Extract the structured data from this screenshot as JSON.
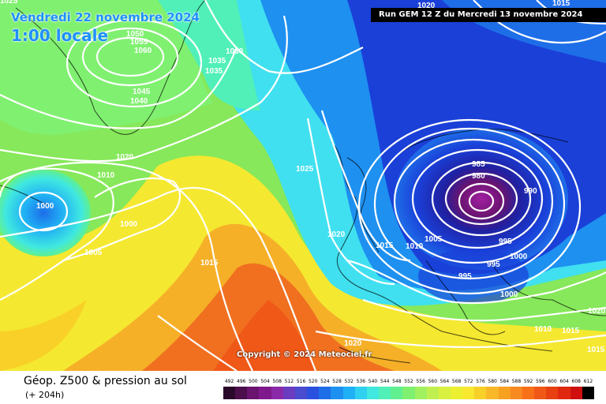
{
  "header": {
    "date": "Vendredi 22 novembre 2024",
    "time": "1:00 locale",
    "run": "Run GEM 12 Z du Mercredi 13 novembre 2024"
  },
  "copyright": "Copyright © 2024 Meteociel.fr",
  "footer": {
    "title": "Géop. Z500 & pression au sol",
    "subtitle": "(+ 204h)"
  },
  "scale": {
    "labels": [
      "492",
      "496",
      "500",
      "504",
      "508",
      "512",
      "516",
      "520",
      "524",
      "528",
      "532",
      "536",
      "540",
      "544",
      "548",
      "552",
      "556",
      "560",
      "564",
      "568",
      "572",
      "576",
      "580",
      "584",
      "588",
      "592",
      "596",
      "600",
      "604",
      "608",
      "612"
    ],
    "colors": [
      "#2a0a2a",
      "#4b0f4b",
      "#6a1470",
      "#801a8c",
      "#8a2aa8",
      "#6a3cc0",
      "#4a4cd0",
      "#2a50e0",
      "#1e6ee8",
      "#1e90f0",
      "#20b0f5",
      "#30d0f0",
      "#40e8e0",
      "#50f0b8",
      "#60f090",
      "#80f070",
      "#a0f060",
      "#c0f050",
      "#d8f040",
      "#ecf030",
      "#f8e830",
      "#f8d028",
      "#f8b828",
      "#f8a020",
      "#f88820",
      "#f87018",
      "#f05818",
      "#e84010",
      "#e02810",
      "#d01010",
      "#000000"
    ]
  },
  "map": {
    "colors": {
      "ocean_green": "#86e85a",
      "yellow": "#f5e830",
      "orange": "#f5a020",
      "red_orange": "#f07020",
      "cyan": "#40e0f0",
      "blue": "#1e90f0",
      "deep_blue": "#1a40d8",
      "navy": "#2020a0",
      "purple": "#801a8c",
      "magenta": "#a020a0"
    },
    "isobar_labels": [
      "1025",
      "1050",
      "1055",
      "1060",
      "1030",
      "1035",
      "1035",
      "1045",
      "1040",
      "1020",
      "1010",
      "1000",
      "1000",
      "1005",
      "1015",
      "1025",
      "1020",
      "1015",
      "1010",
      "1005",
      "985",
      "980",
      "990",
      "995",
      "995",
      "1000",
      "995",
      "1000",
      "1020",
      "1010",
      "1015",
      "1020",
      "1015"
    ],
    "other_labels": [
      "1020",
      "1015"
    ]
  }
}
